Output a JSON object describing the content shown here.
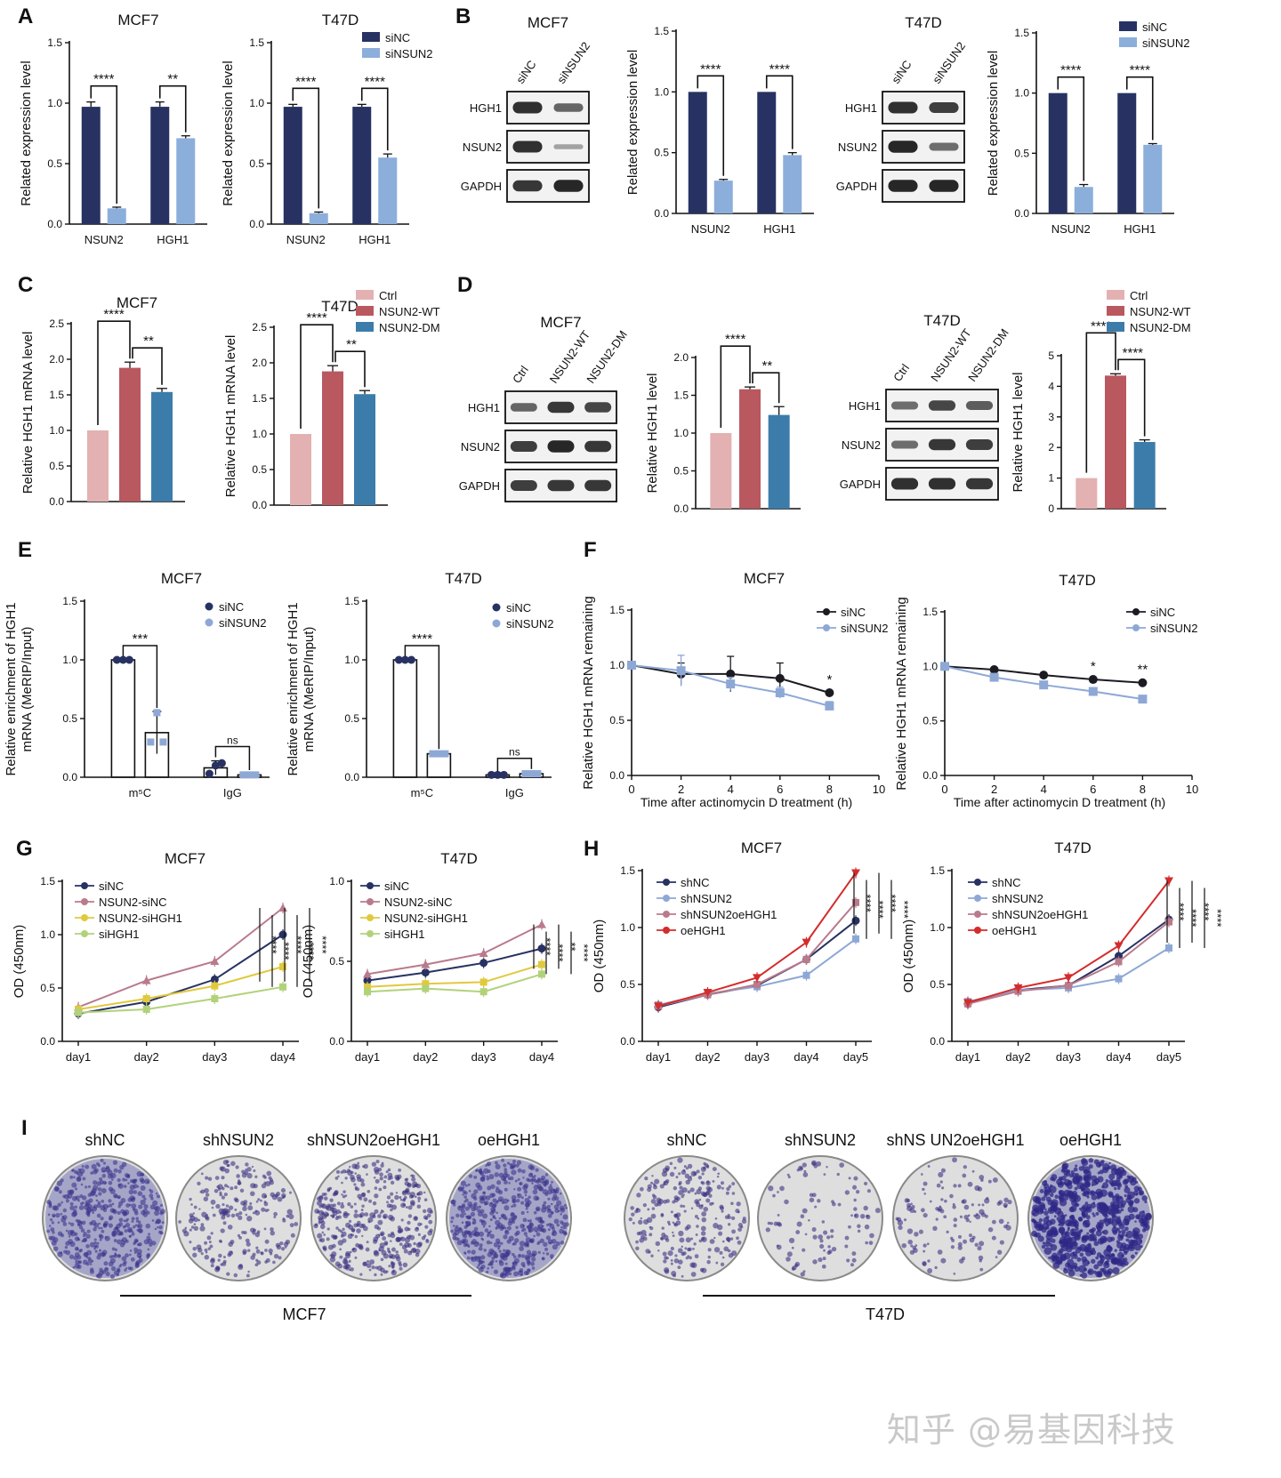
{
  "panel_letters": [
    "A",
    "B",
    "C",
    "D",
    "E",
    "F",
    "G",
    "H",
    "I"
  ],
  "colors": {
    "navy": "#273262",
    "lightblue": "#8caedb",
    "pink": "#e3b1b1",
    "rose": "#b9585f",
    "steel": "#3c7cab",
    "black": "#1b1b22",
    "gray": "#7d9bc4",
    "yellow": "#e0c93e",
    "green": "#b2d27a",
    "red": "#d42c2c",
    "mauve": "#b97b8c",
    "lavender": "#8ea8d6"
  },
  "blot_labels": {
    "B_mcf7_title": "MCF7",
    "B_t47d_title": "T47D",
    "B_lanes": [
      "siNC",
      "siNSUN2"
    ],
    "B_rows": [
      "HGH1",
      "NSUN2",
      "GAPDH"
    ],
    "D_mcf7_title": "MCF7",
    "D_t47d_title": "T47D",
    "D_lanes": [
      "Ctrl",
      "NSUN2-WT",
      "NSUN2-DM"
    ],
    "D_rows": [
      "HGH1",
      "NSUN2",
      "GAPDH"
    ]
  },
  "colony": {
    "mcf7_labels": [
      "shNC",
      "shNSUN2",
      "shNSUN2oeHGH1",
      "oeHGH1"
    ],
    "t47d_labels": [
      "shNC",
      "shNSUN2",
      "shNS UN2oeHGH1",
      "oeHGH1"
    ],
    "mcf7_group": "MCF7",
    "t47d_group": "T47D"
  },
  "watermark": "知乎 @易基因科技",
  "chart_data": [
    {
      "id": "A1",
      "type": "bar",
      "title": "MCF7",
      "ylabel": "Related expression level",
      "ylim": [
        0,
        1.5
      ],
      "yticks": [
        0.0,
        0.5,
        1.0,
        1.5
      ],
      "categories": [
        "NSUN2",
        "HGH1"
      ],
      "series": [
        {
          "name": "siNC",
          "values": [
            0.97,
            0.97
          ],
          "err": [
            0.04,
            0.04
          ]
        },
        {
          "name": "siNSUN2",
          "values": [
            0.13,
            0.71
          ],
          "err": [
            0.01,
            0.02
          ]
        }
      ],
      "sig": [
        "****",
        "**"
      ],
      "legend": []
    },
    {
      "id": "A2",
      "type": "bar",
      "title": "T47D",
      "ylabel": "Related expression level",
      "ylim": [
        0,
        1.5
      ],
      "yticks": [
        0.0,
        0.5,
        1.0,
        1.5
      ],
      "categories": [
        "NSUN2",
        "HGH1"
      ],
      "series": [
        {
          "name": "siNC",
          "values": [
            0.97,
            0.97
          ],
          "err": [
            0.02,
            0.02
          ]
        },
        {
          "name": "siNSUN2",
          "values": [
            0.09,
            0.55
          ],
          "err": [
            0.01,
            0.03
          ]
        }
      ],
      "sig": [
        "****",
        "****"
      ],
      "legend": [
        "siNC",
        "siNSUN2"
      ]
    },
    {
      "id": "B1",
      "type": "bar",
      "title": "",
      "ylabel": "Related expression level",
      "ylim": [
        0,
        1.5
      ],
      "yticks": [
        0.0,
        0.5,
        1.0,
        1.5
      ],
      "categories": [
        "NSUN2",
        "HGH1"
      ],
      "series": [
        {
          "name": "siNC",
          "values": [
            1.0,
            1.0
          ],
          "err": [
            0,
            0
          ]
        },
        {
          "name": "siNSUN2",
          "values": [
            0.27,
            0.48
          ],
          "err": [
            0.01,
            0.02
          ]
        }
      ],
      "sig": [
        "****",
        "****"
      ],
      "legend": []
    },
    {
      "id": "B2",
      "type": "bar",
      "title": "",
      "ylabel": "Related expression level",
      "ylim": [
        0,
        1.5
      ],
      "yticks": [
        0.0,
        0.5,
        1.0,
        1.5
      ],
      "categories": [
        "NSUN2",
        "HGH1"
      ],
      "series": [
        {
          "name": "siNC",
          "values": [
            1.0,
            1.0
          ],
          "err": [
            0,
            0
          ]
        },
        {
          "name": "siNSUN2",
          "values": [
            0.22,
            0.57
          ],
          "err": [
            0.02,
            0.01
          ]
        }
      ],
      "sig": [
        "****",
        "****"
      ],
      "legend": [
        "siNC",
        "siNSUN2"
      ]
    },
    {
      "id": "C1",
      "type": "bar",
      "title": "MCF7",
      "ylabel": "Relative HGH1 mRNA level",
      "ylim": [
        0,
        2.5
      ],
      "yticks": [
        0.0,
        0.5,
        1.0,
        1.5,
        2.0,
        2.5
      ],
      "categories": [
        "Ctrl",
        "NSUN2-WT",
        "NSUN2-DM"
      ],
      "values": [
        1.0,
        1.88,
        1.54
      ],
      "err": [
        0,
        0.08,
        0.05
      ],
      "sig": [
        {
          "a": 0,
          "b": 1,
          "t": "****"
        },
        {
          "a": 1,
          "b": 2,
          "t": "**"
        }
      ],
      "legend": []
    },
    {
      "id": "C2",
      "type": "bar",
      "title": "T47D",
      "ylabel": "Relative HGH1 mRNA level",
      "ylim": [
        0,
        2.5
      ],
      "yticks": [
        0.0,
        0.5,
        1.0,
        1.5,
        2.0,
        2.5
      ],
      "categories": [
        "Ctrl",
        "NSUN2-WT",
        "NSUN2-DM"
      ],
      "values": [
        1.0,
        1.88,
        1.56
      ],
      "err": [
        0,
        0.08,
        0.05
      ],
      "sig": [
        {
          "a": 0,
          "b": 1,
          "t": "****"
        },
        {
          "a": 1,
          "b": 2,
          "t": "**"
        }
      ],
      "legend": [
        "Ctrl",
        "NSUN2-WT",
        "NSUN2-DM"
      ]
    },
    {
      "id": "D1",
      "type": "bar",
      "title": "",
      "ylabel": "Relative  HGH1 level",
      "ylim": [
        0,
        2.0
      ],
      "yticks": [
        0.0,
        0.5,
        1.0,
        1.5,
        2.0
      ],
      "categories": [
        "Ctrl",
        "NSUN2-WT",
        "NSUN2-DM"
      ],
      "values": [
        1.0,
        1.58,
        1.24
      ],
      "err": [
        0,
        0.03,
        0.11
      ],
      "sig": [
        {
          "a": 0,
          "b": 1,
          "t": "****"
        },
        {
          "a": 1,
          "b": 2,
          "t": "**"
        }
      ],
      "legend": []
    },
    {
      "id": "D2",
      "type": "bar",
      "title": "",
      "ylabel": "Relative HGH1 level",
      "ylim": [
        0,
        5
      ],
      "yticks": [
        0,
        1,
        2,
        3,
        4,
        5
      ],
      "categories": [
        "Ctrl",
        "NSUN2-WT",
        "NSUN2-DM"
      ],
      "values": [
        1.0,
        4.35,
        2.18
      ],
      "err": [
        0,
        0.06,
        0.07
      ],
      "sig": [
        {
          "a": 0,
          "b": 1,
          "t": "****"
        },
        {
          "a": 1,
          "b": 2,
          "t": "****"
        }
      ],
      "legend": [
        "Ctrl",
        "NSUN2-WT",
        "NSUN2-DM"
      ]
    },
    {
      "id": "E1",
      "type": "bar",
      "title": "MCF7",
      "ylabel": "Relative enrichment of HGH1 mRNA (MeRIP/Input)",
      "ylim": [
        0,
        1.5
      ],
      "yticks": [
        0.0,
        0.5,
        1.0,
        1.5
      ],
      "categories": [
        "m⁵C",
        "IgG"
      ],
      "series": [
        {
          "name": "siNC",
          "values": [
            1.0,
            0.08
          ],
          "err": [
            0,
            0.06
          ],
          "points": [
            [
              1.0,
              1.0,
              1.0
            ],
            [
              0.03,
              0.1,
              0.12
            ]
          ]
        },
        {
          "name": "siNSUN2",
          "values": [
            0.38,
            0.02
          ],
          "err": [
            0.18,
            0.01
          ],
          "points": [
            [
              0.3,
              0.55,
              0.3
            ],
            [
              0.02,
              0.02,
              0.02
            ]
          ]
        }
      ],
      "sig": [
        "***",
        "ns"
      ],
      "legend": [
        "siNC",
        "siNSUN2"
      ]
    },
    {
      "id": "E2",
      "type": "bar",
      "title": "T47D",
      "ylabel": "Relative enrichment of HGH1 mRNA (MeRIP/Input)",
      "ylim": [
        0,
        1.5
      ],
      "yticks": [
        0.0,
        0.5,
        1.0,
        1.5
      ],
      "categories": [
        "m⁵C",
        "IgG"
      ],
      "series": [
        {
          "name": "siNC",
          "values": [
            1.0,
            0.02
          ],
          "err": [
            0,
            0
          ],
          "points": [
            [
              1.0,
              1.0,
              1.0
            ],
            [
              0.02,
              0.02,
              0.02
            ]
          ]
        },
        {
          "name": "siNSUN2",
          "values": [
            0.2,
            0.03
          ],
          "err": [
            0.01,
            0.01
          ],
          "points": [
            [
              0.2,
              0.2,
              0.2
            ],
            [
              0.03,
              0.03,
              0.03
            ]
          ]
        }
      ],
      "sig": [
        "****",
        "ns"
      ],
      "legend": [
        "siNC",
        "siNSUN2"
      ]
    },
    {
      "id": "F1",
      "type": "line",
      "title": "MCF7",
      "xlabel": "Time after actinomycin D treatment (h)",
      "ylabel": "Relative HGH1 mRNA remaining",
      "xlim": [
        0,
        10
      ],
      "ylim": [
        0,
        1.5
      ],
      "xticks": [
        0,
        2,
        4,
        6,
        8,
        10
      ],
      "yticks": [
        0.0,
        0.5,
        1.0,
        1.5
      ],
      "x": [
        0,
        2,
        4,
        6,
        8
      ],
      "series": [
        {
          "name": "siNC",
          "values": [
            1.0,
            0.92,
            0.92,
            0.88,
            0.75
          ],
          "err": [
            0.02,
            0.1,
            0.16,
            0.14,
            0.02
          ]
        },
        {
          "name": "siNSUN2",
          "values": [
            1.0,
            0.95,
            0.83,
            0.75,
            0.63
          ],
          "err": [
            0.02,
            0.14,
            0.06,
            0.05,
            0.04
          ]
        }
      ],
      "sig": [
        {
          "x": 8,
          "t": "*"
        }
      ],
      "legend": [
        "siNC",
        "siNSUN2"
      ]
    },
    {
      "id": "F2",
      "type": "line",
      "title": "T47D",
      "xlabel": "Time after actinomycin D treatment (h)",
      "ylabel": "Relative HGH1 mRNA remaining",
      "xlim": [
        0,
        10
      ],
      "ylim": [
        0,
        1.5
      ],
      "xticks": [
        0,
        2,
        4,
        6,
        8,
        10
      ],
      "yticks": [
        0.0,
        0.5,
        1.0,
        1.5
      ],
      "x": [
        0,
        2,
        4,
        6,
        8
      ],
      "series": [
        {
          "name": "siNC",
          "values": [
            1.0,
            0.97,
            0.92,
            0.88,
            0.85
          ],
          "err": [
            0.01,
            0.01,
            0.01,
            0.01,
            0.01
          ]
        },
        {
          "name": "siNSUN2",
          "values": [
            1.0,
            0.9,
            0.83,
            0.77,
            0.7
          ],
          "err": [
            0.01,
            0.01,
            0.01,
            0.01,
            0.01
          ]
        }
      ],
      "sig": [
        {
          "x": 6,
          "t": "*"
        },
        {
          "x": 8,
          "t": "**"
        }
      ],
      "legend": [
        "siNC",
        "siNSUN2"
      ]
    },
    {
      "id": "G1",
      "type": "line",
      "title": "MCF7",
      "ylabel": "OD (450nm)",
      "ylim": [
        0,
        1.5
      ],
      "yticks": [
        0.0,
        0.5,
        1.0,
        1.5
      ],
      "categories": [
        "day1",
        "day2",
        "day3",
        "day4"
      ],
      "series": [
        {
          "name": "siNC",
          "values": [
            0.26,
            0.37,
            0.58,
            1.0
          ]
        },
        {
          "name": "NSUN2-siNC",
          "values": [
            0.32,
            0.57,
            0.75,
            1.25
          ]
        },
        {
          "name": "NSUN2-siHGH1",
          "values": [
            0.3,
            0.4,
            0.52,
            0.7
          ]
        },
        {
          "name": "siHGH1",
          "values": [
            0.27,
            0.3,
            0.4,
            0.51
          ]
        }
      ],
      "sig_texts": [
        "****",
        "****",
        "****",
        "****",
        "****"
      ],
      "legend": [
        "siNC",
        "NSUN2-siNC",
        "NSUN2-siHGH1",
        "siHGH1"
      ]
    },
    {
      "id": "G2",
      "type": "line",
      "title": "T47D",
      "ylabel": "OD (450nm)",
      "ylim": [
        0,
        1.0
      ],
      "yticks": [
        0.0,
        0.5,
        1.0
      ],
      "categories": [
        "day1",
        "day2",
        "day3",
        "day4"
      ],
      "series": [
        {
          "name": "siNC",
          "values": [
            0.38,
            0.43,
            0.49,
            0.58
          ]
        },
        {
          "name": "NSUN2-siNC",
          "values": [
            0.42,
            0.48,
            0.55,
            0.73
          ]
        },
        {
          "name": "NSUN2-siHGH1",
          "values": [
            0.34,
            0.36,
            0.37,
            0.48
          ]
        },
        {
          "name": "siHGH1",
          "values": [
            0.31,
            0.33,
            0.31,
            0.42
          ]
        }
      ],
      "sig_texts": [
        "****",
        "****",
        "**",
        "****"
      ],
      "legend": [
        "siNC",
        "NSUN2-siNC",
        "NSUN2-siHGH1",
        "siHGH1"
      ]
    },
    {
      "id": "H1",
      "type": "line",
      "title": "MCF7",
      "ylabel": "OD (450nm)",
      "ylim": [
        0,
        1.5
      ],
      "yticks": [
        0.0,
        0.5,
        1.0,
        1.5
      ],
      "categories": [
        "day1",
        "day2",
        "day3",
        "day4",
        "day5"
      ],
      "series": [
        {
          "name": "shNC",
          "values": [
            0.3,
            0.41,
            0.49,
            0.72,
            1.06
          ]
        },
        {
          "name": "shNSUN2",
          "values": [
            0.32,
            0.42,
            0.48,
            0.58,
            0.9
          ]
        },
        {
          "name": "shNSUN2oeHGH1",
          "values": [
            0.31,
            0.41,
            0.5,
            0.72,
            1.22
          ]
        },
        {
          "name": "oeHGH1",
          "values": [
            0.31,
            0.43,
            0.56,
            0.87,
            1.48
          ]
        }
      ],
      "sig_texts": [
        "****",
        "****",
        "****",
        "****"
      ],
      "legend": [
        "shNC",
        "shNSUN2",
        "shNSUN2oeHGH1",
        "oeHGH1"
      ]
    },
    {
      "id": "H2",
      "type": "line",
      "title": "T47D",
      "ylabel": "OD (450nm)",
      "ylim": [
        0,
        1.5
      ],
      "yticks": [
        0.0,
        0.5,
        1.0,
        1.5
      ],
      "categories": [
        "day1",
        "day2",
        "day3",
        "day4",
        "day5"
      ],
      "series": [
        {
          "name": "shNC",
          "values": [
            0.33,
            0.45,
            0.49,
            0.75,
            1.07
          ]
        },
        {
          "name": "shNSUN2",
          "values": [
            0.35,
            0.45,
            0.47,
            0.55,
            0.82
          ]
        },
        {
          "name": "shNSUN2oeHGH1",
          "values": [
            0.33,
            0.44,
            0.49,
            0.7,
            1.05
          ]
        },
        {
          "name": "oeHGH1",
          "values": [
            0.34,
            0.47,
            0.56,
            0.84,
            1.41
          ]
        }
      ],
      "sig_texts": [
        "****",
        "****",
        "****",
        "****"
      ],
      "legend": [
        "shNC",
        "shNSUN2",
        "shNSUN2oeHGH1",
        "oeHGH1"
      ]
    }
  ]
}
